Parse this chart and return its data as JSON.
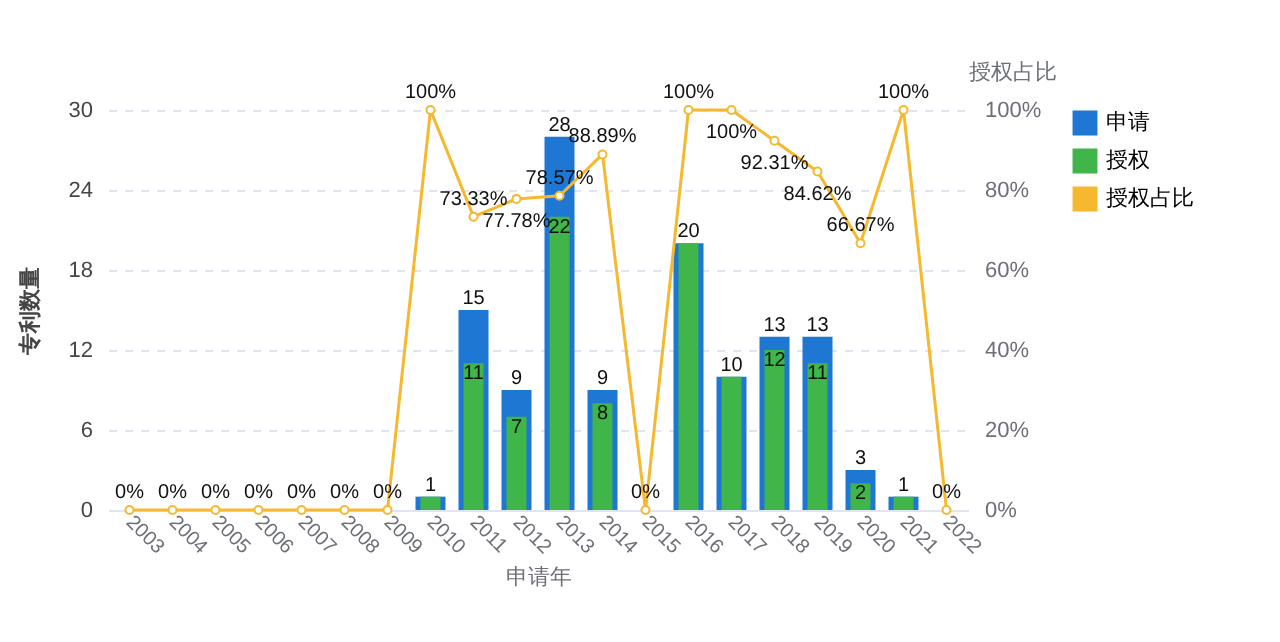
{
  "chart_data": {
    "type": "bar",
    "xlabel": "申请年",
    "ylabel": "专利数量",
    "y2label": "授权占比",
    "categories": [
      "2003",
      "2004",
      "2005",
      "2006",
      "2007",
      "2008",
      "2009",
      "2010",
      "2011",
      "2012",
      "2013",
      "2014",
      "2015",
      "2016",
      "2017",
      "2018",
      "2019",
      "2020",
      "2021",
      "2022"
    ],
    "series": [
      {
        "name": "申请",
        "color": "#1f77d4",
        "values": [
          0,
          0,
          0,
          0,
          0,
          0,
          0,
          1,
          15,
          9,
          28,
          9,
          0,
          20,
          10,
          13,
          13,
          3,
          1,
          0
        ],
        "value_labels": [
          null,
          null,
          null,
          null,
          null,
          null,
          null,
          "1",
          "15",
          "9",
          "28",
          "9",
          null,
          "20",
          "10",
          "13",
          "13",
          "3",
          "1",
          null
        ]
      },
      {
        "name": "授权",
        "color": "#3fb54a",
        "values": [
          0,
          0,
          0,
          0,
          0,
          0,
          0,
          1,
          11,
          7,
          22,
          8,
          0,
          20,
          10,
          12,
          11,
          2,
          1,
          0
        ],
        "value_labels": [
          null,
          null,
          null,
          null,
          null,
          null,
          null,
          null,
          "11",
          "7",
          "22",
          "8",
          null,
          null,
          null,
          "12",
          "11",
          "2",
          null,
          null
        ]
      },
      {
        "name": "授权占比",
        "type": "line",
        "axis": "y2",
        "color": "#f5b82e",
        "values": [
          0,
          0,
          0,
          0,
          0,
          0,
          0,
          100,
          73.33,
          77.78,
          78.57,
          88.89,
          0,
          100,
          100,
          92.31,
          84.62,
          66.67,
          100,
          0
        ],
        "value_labels": [
          "0%",
          "0%",
          "0%",
          "0%",
          "0%",
          "0%",
          "0%",
          "100%",
          "73.33%",
          "77.78%",
          "78.57%",
          "88.89%",
          "0%",
          "100%",
          "100%",
          "92.31%",
          "84.62%",
          "66.67%",
          "100%",
          "0%"
        ]
      }
    ],
    "ylim": [
      0,
      30
    ],
    "yticks": [
      0,
      6,
      12,
      18,
      24,
      30
    ],
    "y2lim": [
      0,
      100
    ],
    "y2ticks": [
      {
        "value": 0,
        "label": "0%"
      },
      {
        "value": 20,
        "label": "20%"
      },
      {
        "value": 40,
        "label": "40%"
      },
      {
        "value": 60,
        "label": "60%"
      },
      {
        "value": 80,
        "label": "80%"
      },
      {
        "value": 100,
        "label": "100%"
      }
    ],
    "grid": "y",
    "legend": "right",
    "marker": "circle",
    "line_style": "solid"
  }
}
